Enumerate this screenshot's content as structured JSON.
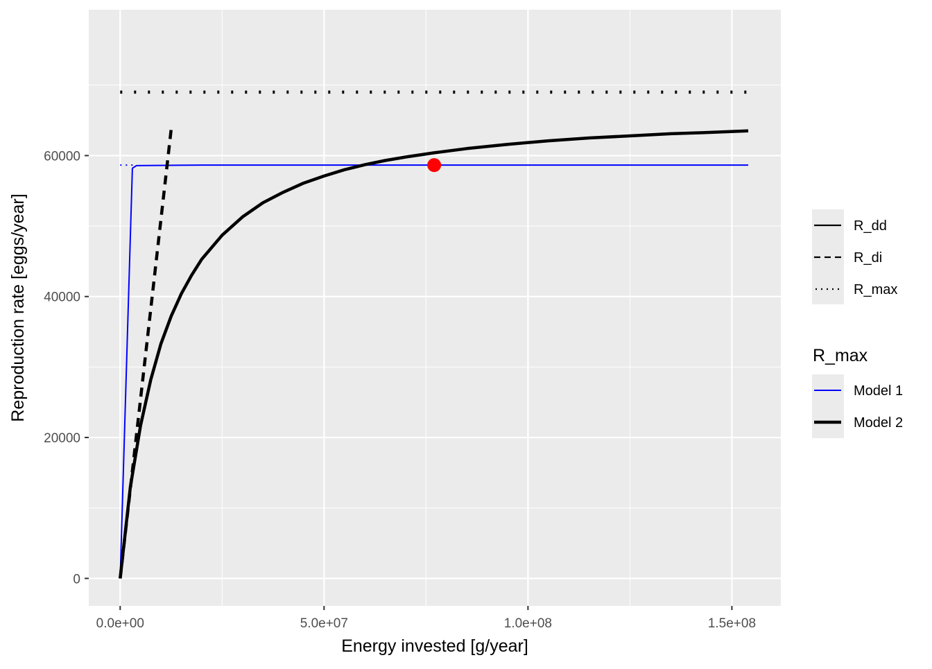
{
  "chart_data": {
    "type": "line",
    "xlabel": "Energy invested [g/year]",
    "ylabel": "Reproduction rate [eggs/year]",
    "xlim": [
      -7700000,
      162000000
    ],
    "ylim": [
      -3900,
      80700
    ],
    "x_ticks": [
      {
        "value": 0,
        "label": "0.0e+00"
      },
      {
        "value": 50000000,
        "label": "5.0e+07"
      },
      {
        "value": 100000000,
        "label": "1.0e+08"
      },
      {
        "value": 150000000,
        "label": "1.5e+08"
      }
    ],
    "y_ticks": [
      {
        "value": 0,
        "label": "0"
      },
      {
        "value": 20000,
        "label": "20000"
      },
      {
        "value": 40000,
        "label": "40000"
      },
      {
        "value": 60000,
        "label": "60000"
      }
    ],
    "grid": true,
    "legend_position": "right",
    "legends": {
      "linetype": {
        "title": "",
        "entries": [
          {
            "label": "R_dd",
            "style": "solid"
          },
          {
            "label": "R_di",
            "style": "dashed"
          },
          {
            "label": "R_max",
            "style": "dotted"
          }
        ]
      },
      "model": {
        "title": "R_max",
        "entries": [
          {
            "label": "Model 1",
            "color": "#0000ff",
            "width": "thin"
          },
          {
            "label": "Model 2",
            "color": "#000000",
            "width": "thick"
          }
        ]
      }
    },
    "series": [
      {
        "name": "Model 1",
        "kind": "R_dd",
        "style": "solid",
        "color": "#0000ff",
        "x": [
          0,
          3000000,
          4000000,
          20000000,
          50000000,
          100000000,
          154000000
        ],
        "y": [
          0,
          58200,
          58580,
          58650,
          58650,
          58650,
          58650
        ]
      },
      {
        "name": "Model 1",
        "kind": "R_max",
        "style": "dotted",
        "color": "#0000ff",
        "x": [
          0,
          4000000
        ],
        "y": [
          58650,
          58650
        ]
      },
      {
        "name": "Model 2",
        "kind": "R_dd",
        "style": "solid",
        "color": "#000000",
        "x": [
          0,
          2500000,
          5000000,
          7500000,
          10000000,
          12500000,
          15000000,
          17500000,
          20000000,
          25000000,
          30000000,
          35000000,
          40000000,
          45000000,
          50000000,
          55000000,
          60000000,
          65000000,
          70000000,
          77000000,
          85000000,
          95000000,
          105000000,
          115000000,
          125000000,
          135000000,
          145000000,
          154000000
        ],
        "y": [
          0,
          13000,
          21700,
          28200,
          33300,
          37200,
          40400,
          43000,
          45300,
          48700,
          51300,
          53300,
          54800,
          56100,
          57100,
          58000,
          58700,
          59300,
          59800,
          60400,
          61000,
          61600,
          62100,
          62500,
          62800,
          63100,
          63300,
          63500
        ]
      },
      {
        "name": "Model 2",
        "kind": "R_di",
        "style": "dashed",
        "color": "#000000",
        "x": [
          0,
          12500000
        ],
        "y": [
          0,
          63700
        ]
      },
      {
        "name": "Model 2",
        "kind": "R_max",
        "style": "dotted",
        "color": "#000000",
        "x": [
          0,
          154000000
        ],
        "y": [
          69000,
          69000
        ]
      }
    ],
    "points": [
      {
        "x": 77000000,
        "y": 58650,
        "color": "#ff0000"
      }
    ]
  }
}
